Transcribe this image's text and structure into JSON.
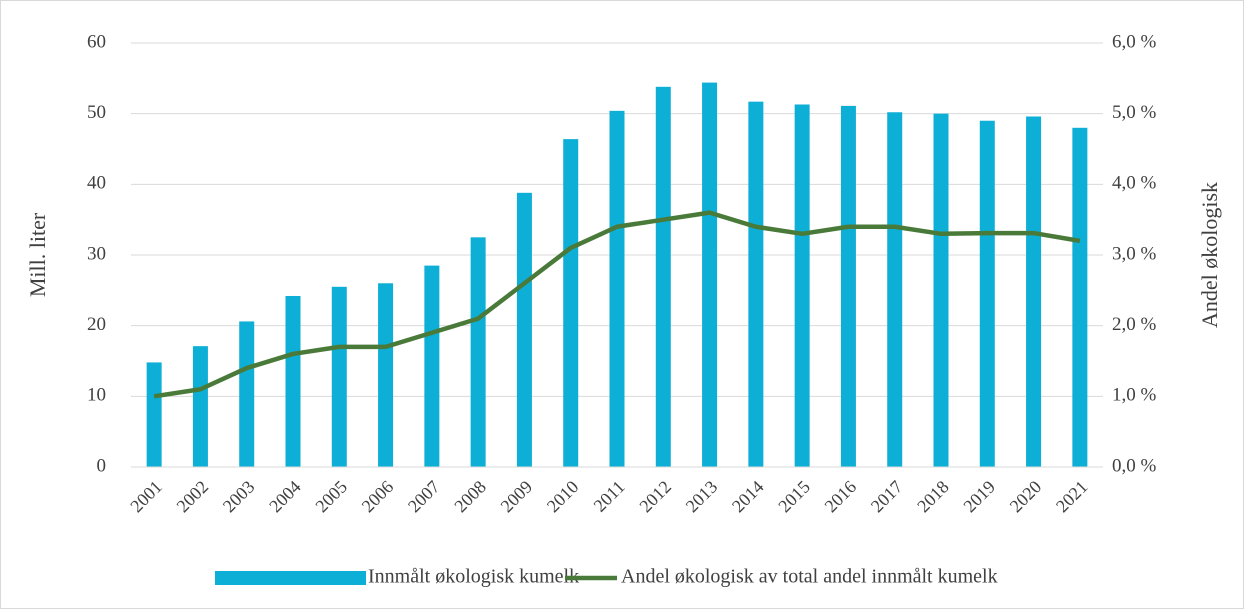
{
  "chart_data": {
    "type": "bar-line",
    "categories": [
      "2001",
      "2002",
      "2003",
      "2004",
      "2005",
      "2006",
      "2007",
      "2008",
      "2009",
      "2010",
      "2011",
      "2012",
      "2013",
      "2014",
      "2015",
      "2016",
      "2017",
      "2018",
      "2019",
      "2020",
      "2021"
    ],
    "series": [
      {
        "name": "Innmålt økologisk kumelk",
        "type": "bar",
        "color": "#0eafd6",
        "values": [
          14.8,
          17.1,
          20.6,
          24.2,
          25.5,
          26.0,
          28.5,
          32.5,
          38.8,
          46.4,
          50.4,
          53.8,
          54.4,
          51.7,
          51.3,
          51.1,
          50.2,
          50.0,
          49.0,
          49.6,
          48.0
        ]
      },
      {
        "name": "Andel økologisk av total andel innmålt kumelk",
        "type": "line",
        "axis": "y2",
        "color": "#4a7a3a",
        "values": [
          1.0,
          1.1,
          1.4,
          1.6,
          1.7,
          1.7,
          1.9,
          2.1,
          2.6,
          3.1,
          3.4,
          3.5,
          3.6,
          3.4,
          3.3,
          3.4,
          3.4,
          3.3,
          3.31,
          3.31,
          3.2
        ]
      }
    ],
    "ylabel": "Mill. liter",
    "y2label": "Andel økologisk",
    "ylim": [
      0,
      60
    ],
    "yticks": [
      0,
      10,
      20,
      30,
      40,
      50,
      60
    ],
    "y2lim": [
      0,
      6
    ],
    "y2ticks": [
      {
        "value": 0,
        "label": "0,0 %"
      },
      {
        "value": 1,
        "label": "1,0 %"
      },
      {
        "value": 2,
        "label": "2,0 %"
      },
      {
        "value": 3,
        "label": "3,0 %"
      },
      {
        "value": 4,
        "label": "4,0 %"
      },
      {
        "value": 5,
        "label": "5,0 %"
      },
      {
        "value": 6,
        "label": "6,0 %"
      }
    ],
    "grid": true,
    "legend": "bottom"
  }
}
